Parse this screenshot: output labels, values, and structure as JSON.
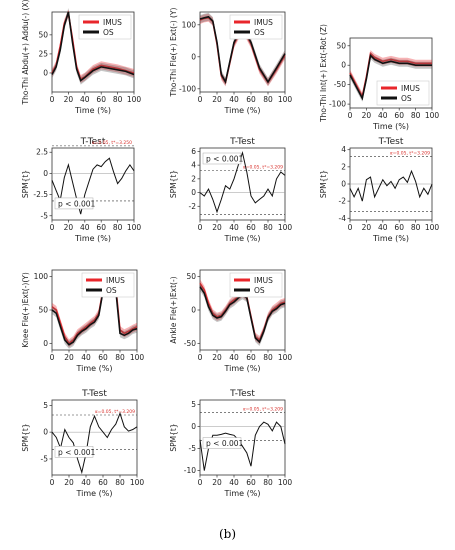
{
  "caption": "(b)",
  "colors": {
    "imus": "#e8262b",
    "os": "#111111",
    "threshold_label": "#d9302c"
  },
  "chart_data": [
    {
      "id": "abdu",
      "type": "line",
      "title": "",
      "xlabel": "Time (%)",
      "ylabel": "Tho-Thi Abdu(+) Addu(-) (X)",
      "xlim": [
        0,
        100
      ],
      "ylim": [
        -25,
        80
      ],
      "xticks": [
        0,
        20,
        40,
        60,
        80,
        100
      ],
      "yticks": [
        0,
        25,
        50
      ],
      "legend": "top-right",
      "legend_entries": [
        "IMUS",
        "OS"
      ],
      "series": [
        {
          "name": "IMUS",
          "x": [
            0,
            5,
            10,
            15,
            20,
            25,
            30,
            35,
            40,
            50,
            60,
            70,
            80,
            90,
            100
          ],
          "y": [
            0,
            10,
            35,
            65,
            78,
            45,
            8,
            -8,
            -5,
            5,
            10,
            8,
            6,
            3,
            0
          ]
        },
        {
          "name": "OS",
          "x": [
            0,
            5,
            10,
            15,
            20,
            25,
            30,
            35,
            40,
            50,
            60,
            70,
            80,
            90,
            100
          ],
          "y": [
            -2,
            8,
            30,
            62,
            80,
            40,
            5,
            -10,
            -6,
            3,
            8,
            6,
            4,
            2,
            -2
          ]
        }
      ]
    },
    {
      "id": "fle",
      "type": "line",
      "title": "",
      "xlabel": "Time (%)",
      "ylabel": "Tho-Thi Fle(+) Ext(-) (Y)",
      "xlim": [
        0,
        100
      ],
      "ylim": [
        -110,
        140
      ],
      "xticks": [
        0,
        20,
        40,
        60,
        80,
        100
      ],
      "yticks": [
        -100,
        0,
        100
      ],
      "legend": "top-right",
      "legend_entries": [
        "IMUS",
        "OS"
      ],
      "series": [
        {
          "name": "IMUS",
          "x": [
            0,
            5,
            10,
            15,
            20,
            25,
            30,
            40,
            50,
            60,
            70,
            80,
            90,
            100
          ],
          "y": [
            115,
            120,
            122,
            110,
            40,
            -60,
            -80,
            40,
            90,
            40,
            -40,
            -80,
            -40,
            5
          ]
        },
        {
          "name": "OS",
          "x": [
            0,
            5,
            10,
            15,
            20,
            25,
            30,
            40,
            50,
            60,
            70,
            80,
            90,
            100
          ],
          "y": [
            118,
            122,
            125,
            112,
            45,
            -55,
            -78,
            45,
            95,
            45,
            -35,
            -78,
            -35,
            10
          ]
        }
      ]
    },
    {
      "id": "rot",
      "type": "line",
      "title": "",
      "xlabel": "Time (%)",
      "ylabel": "Tho-Thi Int(+) Ext(-Rot (Z)",
      "xlim": [
        0,
        100
      ],
      "ylim": [
        -110,
        70
      ],
      "xticks": [
        0,
        20,
        40,
        60,
        80,
        100
      ],
      "yticks": [
        -100,
        -50,
        0,
        50
      ],
      "legend": "bottom-right",
      "legend_entries": [
        "IMUS",
        "OS"
      ],
      "series": [
        {
          "name": "IMUS",
          "x": [
            0,
            5,
            10,
            15,
            20,
            25,
            30,
            40,
            50,
            60,
            70,
            80,
            90,
            100
          ],
          "y": [
            -20,
            -40,
            -60,
            -80,
            -30,
            30,
            20,
            10,
            15,
            10,
            10,
            5,
            5,
            5
          ]
        },
        {
          "name": "OS",
          "x": [
            0,
            5,
            10,
            15,
            20,
            25,
            30,
            40,
            50,
            60,
            70,
            80,
            90,
            100
          ],
          "y": [
            -25,
            -45,
            -65,
            -85,
            -35,
            25,
            15,
            5,
            10,
            5,
            5,
            0,
            0,
            0
          ]
        }
      ]
    },
    {
      "id": "t_abdu",
      "type": "line",
      "title": "T-Test",
      "xlabel": "Time (%)",
      "ylabel": "SPM{t}",
      "xlim": [
        0,
        100
      ],
      "ylim": [
        -5.5,
        3
      ],
      "xticks": [
        0,
        20,
        40,
        60,
        80,
        100
      ],
      "yticks": [
        -5,
        -2.5,
        0,
        2.5
      ],
      "thresholds": [
        3.25,
        -3.25
      ],
      "threshold_label": "α=0.05, t*=3.250",
      "annotation": "p < 0.001",
      "series": [
        {
          "x": [
            0,
            5,
            10,
            15,
            20,
            25,
            30,
            35,
            40,
            45,
            50,
            55,
            60,
            65,
            70,
            75,
            80,
            85,
            90,
            95,
            100
          ],
          "y": [
            -0.8,
            -2,
            -3.2,
            -0.5,
            1,
            -1,
            -3,
            -4.8,
            -2.5,
            -1,
            0.5,
            1,
            0.8,
            1.4,
            1.8,
            0.2,
            -1.2,
            -0.6,
            0.3,
            1,
            0.3
          ]
        }
      ]
    },
    {
      "id": "t_fle",
      "type": "line",
      "title": "T-Test",
      "xlabel": "Time (%)",
      "ylabel": "SPM{t}",
      "xlim": [
        0,
        100
      ],
      "ylim": [
        -4,
        6.5
      ],
      "xticks": [
        0,
        20,
        40,
        60,
        80,
        100
      ],
      "yticks": [
        -2,
        0,
        2,
        4,
        6
      ],
      "thresholds": [
        3.2,
        -3.2
      ],
      "threshold_label": "α=0.05, t*=3.209",
      "annotation": "p < 0.001",
      "series": [
        {
          "x": [
            0,
            5,
            10,
            15,
            20,
            25,
            30,
            35,
            40,
            45,
            50,
            55,
            60,
            65,
            70,
            75,
            80,
            85,
            90,
            95,
            100
          ],
          "y": [
            0,
            -0.5,
            0.5,
            -1,
            -2.8,
            -1,
            1,
            0.5,
            2,
            4,
            5.8,
            3,
            -0.5,
            -1.5,
            -1,
            -0.5,
            0.5,
            -0.5,
            2,
            3,
            2.5
          ]
        }
      ]
    },
    {
      "id": "t_rot",
      "type": "line",
      "title": "T-Test",
      "xlabel": "Time (%)",
      "ylabel": "SPM{t}",
      "xlim": [
        0,
        100
      ],
      "ylim": [
        -4.2,
        4.2
      ],
      "xticks": [
        0,
        20,
        40,
        60,
        80,
        100
      ],
      "yticks": [
        -4,
        -2,
        0,
        2,
        4
      ],
      "thresholds": [
        3.2,
        -3.2
      ],
      "threshold_label": "α=0.05, t*=3.209",
      "series": [
        {
          "x": [
            0,
            5,
            10,
            15,
            20,
            25,
            30,
            35,
            40,
            45,
            50,
            55,
            60,
            65,
            70,
            75,
            80,
            85,
            90,
            95,
            100
          ],
          "y": [
            -0.5,
            -1.5,
            -0.5,
            -2,
            0.5,
            0.8,
            -1.5,
            -0.5,
            0.5,
            -0.2,
            0.3,
            -0.5,
            0.5,
            0.8,
            0.2,
            1.5,
            0.3,
            -1.5,
            -0.5,
            -1.2,
            0
          ]
        }
      ]
    },
    {
      "id": "knee",
      "type": "line",
      "title": "",
      "xlabel": "Time (%)",
      "ylabel": "Knee Fle(+)Ext(-)(Y)",
      "xlim": [
        0,
        100
      ],
      "ylim": [
        -10,
        110
      ],
      "xticks": [
        0,
        20,
        40,
        60,
        80,
        100
      ],
      "yticks": [
        0,
        50,
        100
      ],
      "legend": "top-right",
      "legend_entries": [
        "IMUS",
        "OS"
      ],
      "series": [
        {
          "name": "IMUS",
          "x": [
            0,
            5,
            10,
            15,
            20,
            25,
            30,
            35,
            40,
            45,
            50,
            55,
            60,
            65,
            70,
            75,
            80,
            85,
            90,
            95,
            100
          ],
          "y": [
            55,
            50,
            30,
            10,
            0,
            5,
            15,
            20,
            25,
            30,
            35,
            45,
            80,
            95,
            100,
            85,
            20,
            15,
            18,
            22,
            25
          ]
        },
        {
          "name": "OS",
          "x": [
            0,
            5,
            10,
            15,
            20,
            25,
            30,
            35,
            40,
            45,
            50,
            55,
            60,
            65,
            70,
            75,
            80,
            85,
            90,
            95,
            100
          ],
          "y": [
            50,
            45,
            25,
            5,
            -2,
            2,
            12,
            18,
            22,
            28,
            32,
            42,
            78,
            92,
            98,
            80,
            15,
            12,
            15,
            20,
            22
          ]
        }
      ]
    },
    {
      "id": "ankle",
      "type": "line",
      "title": "",
      "xlabel": "Time (%)",
      "ylabel": "Ankle Fle(+)Ext(-)",
      "xlim": [
        0,
        100
      ],
      "ylim": [
        -60,
        60
      ],
      "xticks": [
        0,
        20,
        40,
        60,
        80,
        100
      ],
      "yticks": [
        -50,
        0,
        50
      ],
      "legend": "top-right",
      "legend_entries": [
        "IMUS",
        "OS"
      ],
      "series": [
        {
          "name": "IMUS",
          "x": [
            0,
            5,
            10,
            15,
            20,
            25,
            30,
            35,
            40,
            45,
            50,
            55,
            60,
            65,
            70,
            75,
            80,
            85,
            90,
            95,
            100
          ],
          "y": [
            40,
            30,
            10,
            -5,
            -10,
            -8,
            0,
            10,
            15,
            20,
            25,
            20,
            -10,
            -40,
            -45,
            -30,
            -10,
            0,
            5,
            10,
            12
          ]
        },
        {
          "name": "OS",
          "x": [
            0,
            5,
            10,
            15,
            20,
            25,
            30,
            35,
            40,
            45,
            50,
            55,
            60,
            65,
            70,
            75,
            80,
            85,
            90,
            95,
            100
          ],
          "y": [
            35,
            25,
            5,
            -8,
            -12,
            -10,
            -2,
            8,
            12,
            18,
            22,
            18,
            -12,
            -42,
            -48,
            -32,
            -12,
            -2,
            2,
            8,
            10
          ]
        }
      ]
    },
    {
      "id": "t_knee",
      "type": "line",
      "title": "T-Test",
      "xlabel": "Time (%)",
      "ylabel": "SPM{t}",
      "xlim": [
        0,
        100
      ],
      "ylim": [
        -8,
        6
      ],
      "xticks": [
        0,
        20,
        40,
        60,
        80,
        100
      ],
      "yticks": [
        -5,
        0,
        5
      ],
      "thresholds": [
        3.2,
        -3.2
      ],
      "threshold_label": "α=0.05, t*=3.209",
      "annotation": "p < 0.001",
      "series": [
        {
          "x": [
            0,
            5,
            10,
            15,
            20,
            25,
            30,
            35,
            40,
            45,
            50,
            55,
            60,
            65,
            70,
            75,
            80,
            85,
            90,
            95,
            100
          ],
          "y": [
            0,
            -1,
            -3,
            0.5,
            -1,
            -2,
            -5,
            -7.5,
            -4,
            1,
            3,
            1,
            0,
            -1,
            0.5,
            1.5,
            3.5,
            1,
            0.2,
            0.5,
            1
          ]
        }
      ]
    },
    {
      "id": "t_ankle",
      "type": "line",
      "title": "T-Test",
      "xlabel": "Time (%)",
      "ylabel": "SPM{t}",
      "xlim": [
        0,
        100
      ],
      "ylim": [
        -11,
        6
      ],
      "xticks": [
        0,
        20,
        40,
        60,
        80,
        100
      ],
      "yticks": [
        -10,
        -5,
        0,
        5
      ],
      "thresholds": [
        3.2,
        -3.2
      ],
      "threshold_label": "α=0.05, t*=3.209",
      "annotation": "p < 0.001",
      "series": [
        {
          "x": [
            0,
            5,
            10,
            15,
            20,
            25,
            30,
            35,
            40,
            45,
            50,
            55,
            60,
            65,
            70,
            75,
            80,
            85,
            90,
            95,
            100
          ],
          "y": [
            -3,
            -10,
            -5,
            -2,
            -2,
            -1.8,
            -1.5,
            -1.8,
            -2,
            -3,
            -4.5,
            -6,
            -9,
            -2,
            0,
            1,
            0.5,
            -1,
            1,
            0,
            -4
          ]
        }
      ]
    }
  ]
}
